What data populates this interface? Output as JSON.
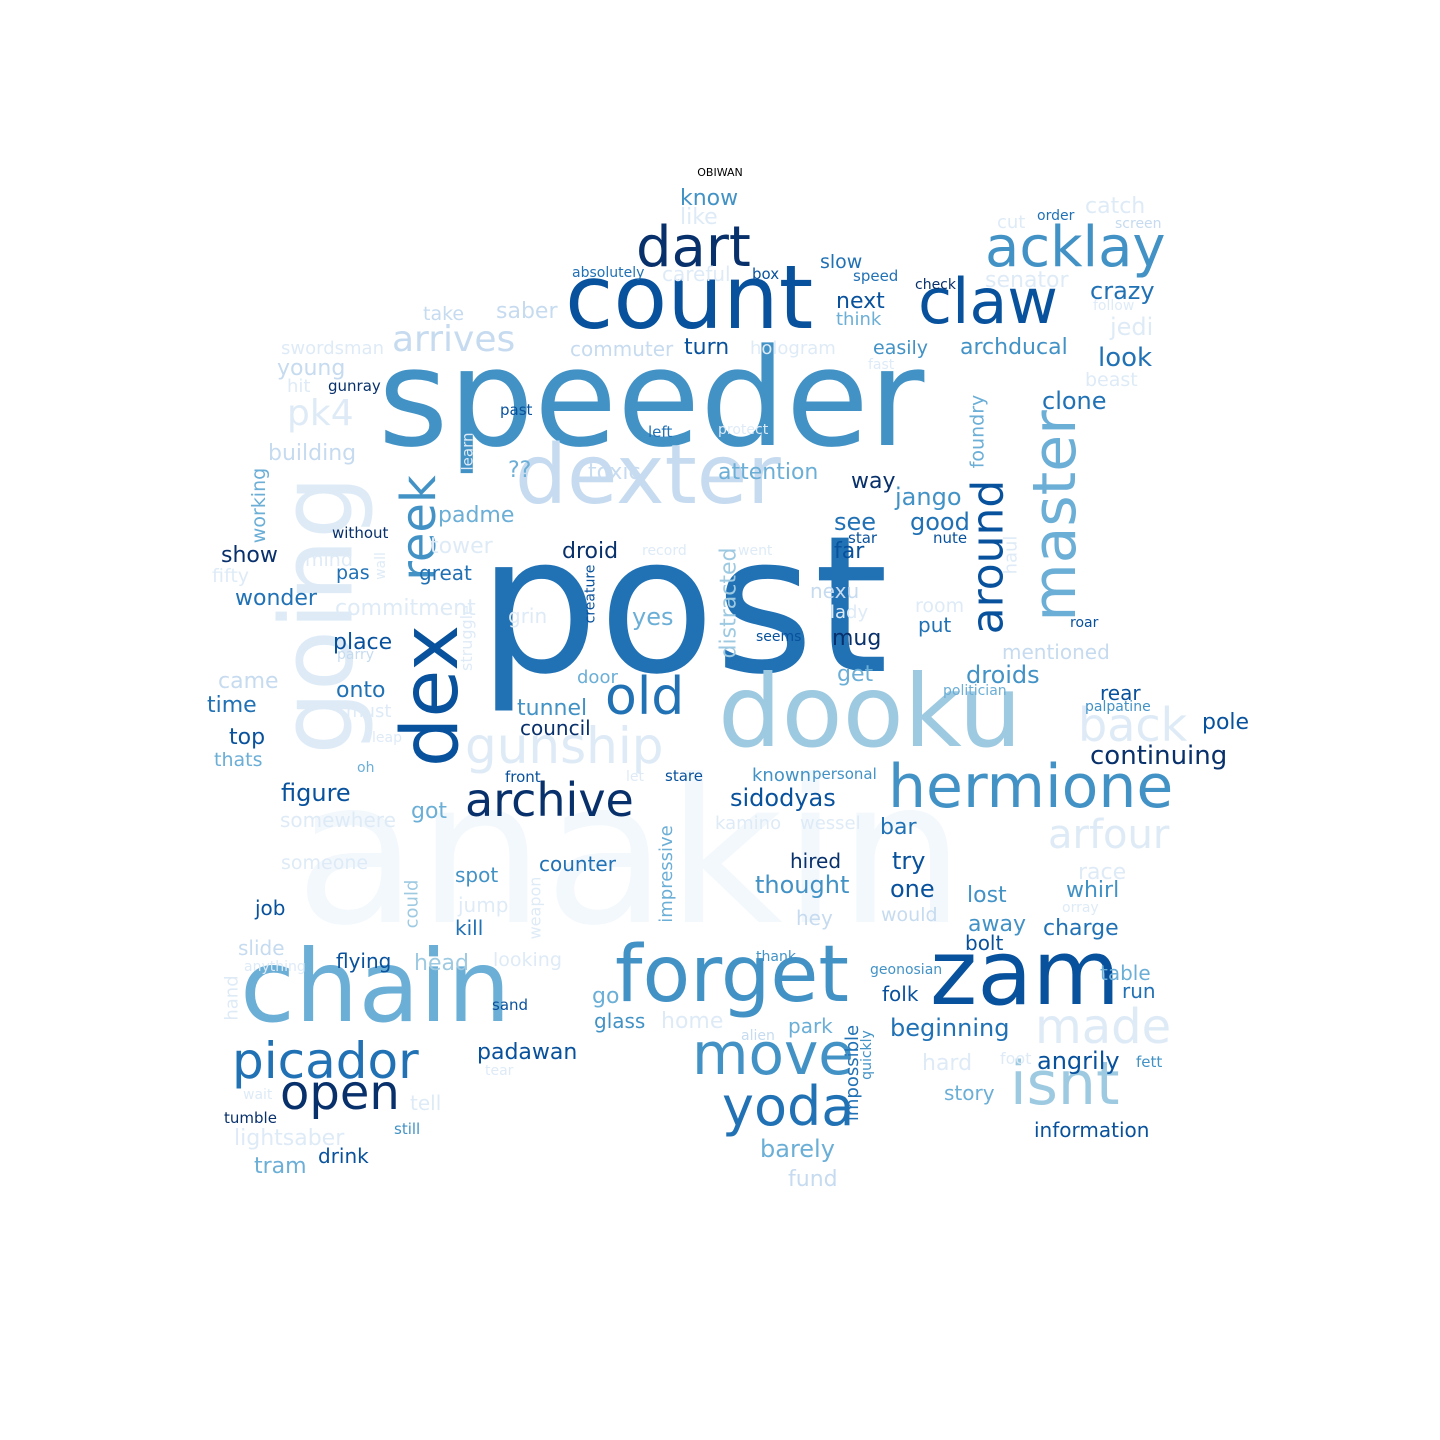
{
  "title": "OBIWAN",
  "palette": {
    "c1": "#08306b",
    "c2": "#08519c",
    "c3": "#2171b5",
    "c4": "#4292c6",
    "c5": "#6baed6",
    "c6": "#9ecae1",
    "c7": "#c6dbef",
    "c8": "#deebf7",
    "c9": "#f3f8fd"
  },
  "words": [
    {
      "text": "anakin",
      "color": "c9"
    },
    {
      "text": "post",
      "color": "c3"
    },
    {
      "text": "speeder",
      "color": "c4"
    },
    {
      "text": "count",
      "color": "c2"
    },
    {
      "text": "dooku",
      "color": "c6"
    },
    {
      "text": "dexter",
      "color": "c7"
    },
    {
      "text": "chain",
      "color": "c5"
    },
    {
      "text": "going",
      "color": "c8"
    },
    {
      "text": "zam",
      "color": "c2"
    },
    {
      "text": "forget",
      "color": "c4"
    },
    {
      "text": "dex",
      "color": "c2"
    },
    {
      "text": "claw",
      "color": "c2"
    },
    {
      "text": "acklay",
      "color": "c4"
    },
    {
      "text": "dart",
      "color": "c1"
    },
    {
      "text": "hermione",
      "color": "c4"
    },
    {
      "text": "master",
      "color": "c5"
    },
    {
      "text": "move",
      "color": "c4"
    },
    {
      "text": "isnt",
      "color": "c6"
    },
    {
      "text": "picador",
      "color": "c3"
    },
    {
      "text": "yoda",
      "color": "c3"
    },
    {
      "text": "archive",
      "color": "c1"
    },
    {
      "text": "open",
      "color": "c1"
    },
    {
      "text": "reek",
      "color": "c4"
    },
    {
      "text": "gunship",
      "color": "c8"
    },
    {
      "text": "made",
      "color": "c8"
    },
    {
      "text": "old",
      "color": "c3"
    },
    {
      "text": "back",
      "color": "c8"
    },
    {
      "text": "arfour",
      "color": "c8"
    },
    {
      "text": "around",
      "color": "c2"
    },
    {
      "text": "arrives",
      "color": "c7"
    },
    {
      "text": "pk4",
      "color": "c8"
    },
    {
      "text": "know",
      "color": "c4"
    },
    {
      "text": "like",
      "color": "c8"
    },
    {
      "text": "absolutely",
      "color": "c3"
    },
    {
      "text": "careful",
      "color": "c8"
    },
    {
      "text": "box",
      "color": "c2"
    },
    {
      "text": "slow",
      "color": "c3"
    },
    {
      "text": "speed",
      "color": "c3"
    },
    {
      "text": "check",
      "color": "c1"
    },
    {
      "text": "cut",
      "color": "c8"
    },
    {
      "text": "order",
      "color": "c3"
    },
    {
      "text": "catch",
      "color": "c8"
    },
    {
      "text": "screen",
      "color": "c7"
    },
    {
      "text": "senator",
      "color": "c8"
    },
    {
      "text": "crazy",
      "color": "c3"
    },
    {
      "text": "follow",
      "color": "c8"
    },
    {
      "text": "jedi",
      "color": "c8"
    },
    {
      "text": "take",
      "color": "c7"
    },
    {
      "text": "saber",
      "color": "c7"
    },
    {
      "text": "next",
      "color": "c2"
    },
    {
      "text": "think",
      "color": "c5"
    },
    {
      "text": "swordsman",
      "color": "c8"
    },
    {
      "text": "commuter",
      "color": "c7"
    },
    {
      "text": "turn",
      "color": "c2"
    },
    {
      "text": "hologram",
      "color": "c8"
    },
    {
      "text": "easily",
      "color": "c4"
    },
    {
      "text": "archducal",
      "color": "c4"
    },
    {
      "text": "look",
      "color": "c3"
    },
    {
      "text": "young",
      "color": "c7"
    },
    {
      "text": "fast",
      "color": "c8"
    },
    {
      "text": "beast",
      "color": "c8"
    },
    {
      "text": "hit",
      "color": "c8"
    },
    {
      "text": "gunray",
      "color": "c1"
    },
    {
      "text": "foundry",
      "color": "c5"
    },
    {
      "text": "clone",
      "color": "c3"
    },
    {
      "text": "past",
      "color": "c2"
    },
    {
      "text": "left",
      "color": "c3"
    },
    {
      "text": "protect",
      "color": "c8"
    },
    {
      "text": "building",
      "color": "c7"
    },
    {
      "text": "learn",
      "color": "c8"
    },
    {
      "text": "??",
      "color": "c5"
    },
    {
      "text": "toxic",
      "color": "c7"
    },
    {
      "text": "attention",
      "color": "c5"
    },
    {
      "text": "way",
      "color": "c1"
    },
    {
      "text": "jango",
      "color": "c4"
    },
    {
      "text": "working",
      "color": "c5"
    },
    {
      "text": "padme",
      "color": "c5"
    },
    {
      "text": "see",
      "color": "c3"
    },
    {
      "text": "good",
      "color": "c3"
    },
    {
      "text": "without",
      "color": "c1"
    },
    {
      "text": "tower",
      "color": "c8"
    },
    {
      "text": "star",
      "color": "c2"
    },
    {
      "text": "nute",
      "color": "c2"
    },
    {
      "text": "show",
      "color": "c1"
    },
    {
      "text": "mind",
      "color": "c8"
    },
    {
      "text": "droid",
      "color": "c1"
    },
    {
      "text": "record",
      "color": "c8"
    },
    {
      "text": "went",
      "color": "c8"
    },
    {
      "text": "far",
      "color": "c2"
    },
    {
      "text": "haul",
      "color": "c8"
    },
    {
      "text": "fifty",
      "color": "c8"
    },
    {
      "text": "wall",
      "color": "c8"
    },
    {
      "text": "pas",
      "color": "c3"
    },
    {
      "text": "great",
      "color": "c3"
    },
    {
      "text": "creature",
      "color": "c2"
    },
    {
      "text": "distracted",
      "color": "c6"
    },
    {
      "text": "nexu",
      "color": "c7"
    },
    {
      "text": "wonder",
      "color": "c3"
    },
    {
      "text": "commitment",
      "color": "c8"
    },
    {
      "text": "lady",
      "color": "c8"
    },
    {
      "text": "room",
      "color": "c8"
    },
    {
      "text": "grin",
      "color": "c8"
    },
    {
      "text": "yes",
      "color": "c5"
    },
    {
      "text": "put",
      "color": "c3"
    },
    {
      "text": "roar",
      "color": "c2"
    },
    {
      "text": "place",
      "color": "c2"
    },
    {
      "text": "struggle",
      "color": "c8"
    },
    {
      "text": "seems",
      "color": "c2"
    },
    {
      "text": "mug",
      "color": "c1"
    },
    {
      "text": "mentioned",
      "color": "c7"
    },
    {
      "text": "parry",
      "color": "c7"
    },
    {
      "text": "get",
      "color": "c5"
    },
    {
      "text": "came",
      "color": "c7"
    },
    {
      "text": "onto",
      "color": "c3"
    },
    {
      "text": "door",
      "color": "c5"
    },
    {
      "text": "droids",
      "color": "c4"
    },
    {
      "text": "politician",
      "color": "c5"
    },
    {
      "text": "time",
      "color": "c3"
    },
    {
      "text": "must",
      "color": "c8"
    },
    {
      "text": "tunnel",
      "color": "c4"
    },
    {
      "text": "rear",
      "color": "c2"
    },
    {
      "text": "palpatine",
      "color": "c4"
    },
    {
      "text": "council",
      "color": "c1"
    },
    {
      "text": "pole",
      "color": "c2"
    },
    {
      "text": "top",
      "color": "c2"
    },
    {
      "text": "leap",
      "color": "c8"
    },
    {
      "text": "continuing",
      "color": "c1"
    },
    {
      "text": "thats",
      "color": "c5"
    },
    {
      "text": "oh",
      "color": "c5"
    },
    {
      "text": "front",
      "color": "c2"
    },
    {
      "text": "let",
      "color": "c8"
    },
    {
      "text": "stare",
      "color": "c2"
    },
    {
      "text": "known",
      "color": "c4"
    },
    {
      "text": "personal",
      "color": "c4"
    },
    {
      "text": "figure",
      "color": "c2"
    },
    {
      "text": "sidodyas",
      "color": "c2"
    },
    {
      "text": "somewhere",
      "color": "c8"
    },
    {
      "text": "got",
      "color": "c5"
    },
    {
      "text": "kamino",
      "color": "c8"
    },
    {
      "text": "wessel",
      "color": "c8"
    },
    {
      "text": "bar",
      "color": "c3"
    },
    {
      "text": "impressive",
      "color": "c5"
    },
    {
      "text": "someone",
      "color": "c8"
    },
    {
      "text": "counter",
      "color": "c3"
    },
    {
      "text": "hired",
      "color": "c1"
    },
    {
      "text": "try",
      "color": "c2"
    },
    {
      "text": "race",
      "color": "c8"
    },
    {
      "text": "spot",
      "color": "c4"
    },
    {
      "text": "thought",
      "color": "c4"
    },
    {
      "text": "one",
      "color": "c2"
    },
    {
      "text": "whirl",
      "color": "c4"
    },
    {
      "text": "job",
      "color": "c2"
    },
    {
      "text": "could",
      "color": "c6"
    },
    {
      "text": "jump",
      "color": "c8"
    },
    {
      "text": "weapon",
      "color": "c8"
    },
    {
      "text": "lost",
      "color": "c4"
    },
    {
      "text": "orray",
      "color": "c8"
    },
    {
      "text": "hey",
      "color": "c7"
    },
    {
      "text": "would",
      "color": "c7"
    },
    {
      "text": "kill",
      "color": "c3"
    },
    {
      "text": "away",
      "color": "c4"
    },
    {
      "text": "charge",
      "color": "c3"
    },
    {
      "text": "slide",
      "color": "c7"
    },
    {
      "text": "bolt",
      "color": "c2"
    },
    {
      "text": "flying",
      "color": "c2"
    },
    {
      "text": "head",
      "color": "c6"
    },
    {
      "text": "looking",
      "color": "c8"
    },
    {
      "text": "thank",
      "color": "c4"
    },
    {
      "text": "geonosian",
      "color": "c4"
    },
    {
      "text": "table",
      "color": "c5"
    },
    {
      "text": "anything",
      "color": "c8"
    },
    {
      "text": "hand",
      "color": "c8"
    },
    {
      "text": "go",
      "color": "c5"
    },
    {
      "text": "folk",
      "color": "c2"
    },
    {
      "text": "run",
      "color": "c3"
    },
    {
      "text": "sand",
      "color": "c2"
    },
    {
      "text": "glass",
      "color": "c4"
    },
    {
      "text": "home",
      "color": "c8"
    },
    {
      "text": "park",
      "color": "c5"
    },
    {
      "text": "beginning",
      "color": "c3"
    },
    {
      "text": "alien",
      "color": "c7"
    },
    {
      "text": "impossible",
      "color": "c3"
    },
    {
      "text": "quickly",
      "color": "c4"
    },
    {
      "text": "padawan",
      "color": "c2"
    },
    {
      "text": "hard",
      "color": "c8"
    },
    {
      "text": "foot",
      "color": "c8"
    },
    {
      "text": "angrily",
      "color": "c2"
    },
    {
      "text": "fett",
      "color": "c4"
    },
    {
      "text": "tear",
      "color": "c8"
    },
    {
      "text": "story",
      "color": "c5"
    },
    {
      "text": "wait",
      "color": "c8"
    },
    {
      "text": "tell",
      "color": "c8"
    },
    {
      "text": "tumble",
      "color": "c1"
    },
    {
      "text": "still",
      "color": "c4"
    },
    {
      "text": "information",
      "color": "c2"
    },
    {
      "text": "lightsaber",
      "color": "c8"
    },
    {
      "text": "drink",
      "color": "c2"
    },
    {
      "text": "tram",
      "color": "c5"
    },
    {
      "text": "barely",
      "color": "c5"
    },
    {
      "text": "fund",
      "color": "c7"
    }
  ]
}
